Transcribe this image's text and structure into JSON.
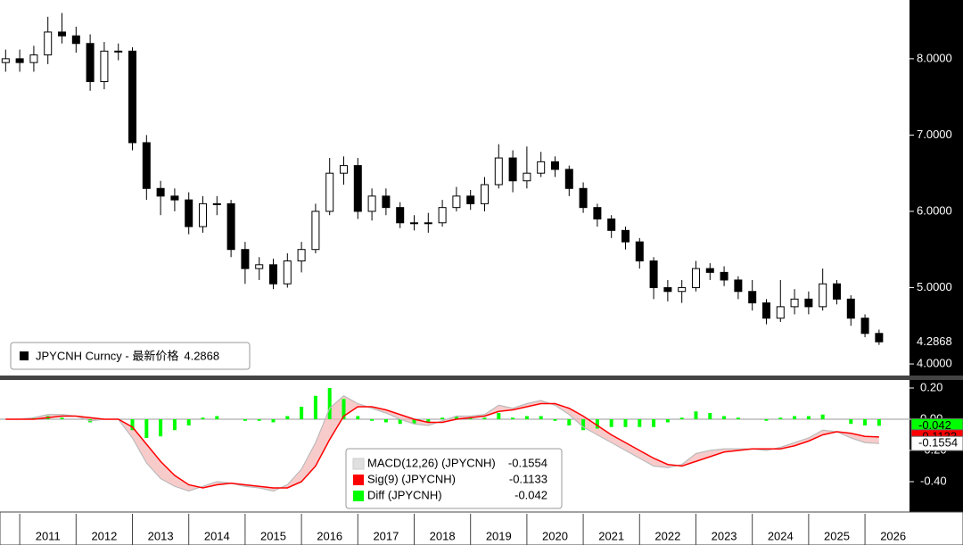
{
  "chart_data": [
    {
      "type": "candlestick",
      "name": "JPYCNH Curncy - 最新价格",
      "last": 4.2868,
      "x": [
        2010.75,
        2011,
        2011.25,
        2011.5,
        2011.75,
        2012,
        2012.25,
        2012.5,
        2012.75,
        2013,
        2013.25,
        2013.5,
        2013.75,
        2014,
        2014.25,
        2014.5,
        2014.75,
        2015,
        2015.25,
        2015.5,
        2015.75,
        2016,
        2016.25,
        2016.5,
        2016.75,
        2017,
        2017.25,
        2017.5,
        2017.75,
        2018,
        2018.25,
        2018.5,
        2018.75,
        2019,
        2019.25,
        2019.5,
        2019.75,
        2020,
        2020.25,
        2020.5,
        2020.75,
        2021,
        2021.25,
        2021.5,
        2021.75,
        2022,
        2022.25,
        2022.5,
        2022.75,
        2023,
        2023.25,
        2023.5,
        2023.75,
        2024,
        2024.25,
        2024.5,
        2024.75,
        2025,
        2025.25,
        2025.5,
        2025.75,
        2026,
        2026.25
      ],
      "open": [
        7.95,
        8.0,
        7.95,
        8.05,
        8.35,
        8.3,
        8.2,
        7.7,
        8.1,
        8.1,
        6.9,
        6.3,
        6.2,
        6.15,
        5.8,
        6.1,
        6.1,
        5.5,
        5.25,
        5.3,
        5.05,
        5.35,
        5.5,
        6.0,
        6.5,
        6.6,
        6.0,
        6.2,
        6.05,
        5.85,
        5.85,
        5.85,
        6.05,
        6.2,
        6.1,
        6.35,
        6.7,
        6.4,
        6.5,
        6.65,
        6.55,
        6.3,
        6.05,
        5.9,
        5.75,
        5.6,
        5.35,
        5.0,
        4.95,
        5.0,
        5.25,
        5.2,
        5.1,
        4.95,
        4.8,
        4.6,
        4.75,
        4.85,
        4.75,
        5.05,
        4.85,
        4.6,
        4.4
      ],
      "high": [
        8.12,
        8.12,
        8.17,
        8.55,
        8.6,
        8.42,
        8.32,
        8.22,
        8.2,
        8.15,
        7.0,
        6.4,
        6.3,
        6.25,
        6.2,
        6.2,
        6.15,
        5.6,
        5.4,
        5.38,
        5.45,
        5.6,
        6.1,
        6.7,
        6.72,
        6.7,
        6.3,
        6.3,
        6.12,
        5.95,
        5.98,
        6.15,
        6.32,
        6.28,
        6.45,
        6.88,
        6.8,
        6.85,
        6.78,
        6.72,
        6.6,
        6.38,
        6.1,
        5.95,
        5.8,
        5.65,
        5.4,
        5.1,
        5.1,
        5.35,
        5.32,
        5.28,
        5.15,
        5.1,
        4.85,
        5.1,
        4.98,
        4.95,
        5.25,
        5.1,
        4.9,
        4.65,
        4.45
      ],
      "low": [
        7.83,
        7.83,
        7.83,
        7.93,
        8.2,
        8.08,
        7.58,
        7.6,
        7.98,
        6.8,
        6.15,
        5.95,
        6.0,
        5.7,
        5.72,
        5.95,
        5.4,
        5.05,
        5.1,
        4.98,
        5.0,
        5.2,
        5.45,
        5.95,
        6.35,
        5.9,
        5.88,
        5.95,
        5.78,
        5.75,
        5.72,
        5.8,
        6.0,
        6.02,
        6.0,
        6.3,
        6.25,
        6.3,
        6.45,
        6.45,
        6.2,
        5.98,
        5.8,
        5.65,
        5.5,
        5.25,
        4.85,
        4.82,
        4.8,
        4.95,
        5.1,
        5.02,
        4.85,
        4.7,
        4.52,
        4.55,
        4.65,
        4.65,
        4.7,
        4.78,
        4.5,
        4.35,
        4.25
      ],
      "close": [
        8.0,
        7.95,
        8.05,
        8.35,
        8.3,
        8.2,
        7.7,
        8.1,
        8.1,
        6.9,
        6.3,
        6.2,
        6.15,
        5.8,
        6.1,
        6.1,
        5.5,
        5.25,
        5.3,
        5.05,
        5.35,
        5.5,
        6.0,
        6.5,
        6.6,
        6.0,
        6.2,
        6.05,
        5.85,
        5.85,
        5.85,
        6.05,
        6.2,
        6.1,
        6.35,
        6.7,
        6.4,
        6.5,
        6.65,
        6.55,
        6.3,
        6.05,
        5.9,
        5.75,
        5.6,
        5.35,
        5.0,
        4.95,
        5.0,
        5.25,
        5.2,
        5.1,
        4.95,
        4.8,
        4.6,
        4.75,
        4.85,
        4.75,
        5.05,
        4.85,
        4.6,
        4.4,
        4.29
      ],
      "up_color": "#ffffff",
      "down_color": "#000000",
      "xlim": [
        2010.65,
        2026.79
      ],
      "ylim": [
        3.86,
        8.77
      ],
      "yticks": [
        {
          "value": 8,
          "label": "8.0000"
        },
        {
          "value": 7,
          "label": "7.0000"
        },
        {
          "value": 6,
          "label": "6.0000"
        },
        {
          "value": 5,
          "label": "5.0000"
        },
        {
          "value": 4,
          "label": "4.0000"
        }
      ]
    },
    {
      "type": "macd",
      "series": [
        {
          "name": "MACD(12,26) (JPYCNH)",
          "color": "#e0e0e0",
          "last": -0.1554,
          "values": [
            0,
            0,
            0.01,
            0.03,
            0.03,
            0.02,
            -0.01,
            0,
            0,
            -0.12,
            -0.28,
            -0.38,
            -0.43,
            -0.46,
            -0.43,
            -0.4,
            -0.41,
            -0.43,
            -0.44,
            -0.46,
            -0.42,
            -0.32,
            -0.15,
            0.07,
            0.15,
            0.1,
            0.07,
            0.04,
            0,
            -0.03,
            -0.04,
            -0.01,
            0.02,
            0.02,
            0.03,
            0.09,
            0.07,
            0.1,
            0.12,
            0.09,
            0.03,
            -0.05,
            -0.1,
            -0.15,
            -0.2,
            -0.25,
            -0.3,
            -0.31,
            -0.29,
            -0.22,
            -0.2,
            -0.19,
            -0.19,
            -0.19,
            -0.2,
            -0.18,
            -0.15,
            -0.12,
            -0.07,
            -0.08,
            -0.12,
            -0.15,
            -0.1554
          ]
        },
        {
          "name": "Sig(9) (JPYCNH)",
          "color": "#ff0000",
          "last": -0.1133,
          "values": [
            0,
            0,
            0,
            0.01,
            0.02,
            0.02,
            0.01,
            0,
            0,
            -0.05,
            -0.16,
            -0.27,
            -0.36,
            -0.42,
            -0.44,
            -0.42,
            -0.41,
            -0.42,
            -0.43,
            -0.44,
            -0.44,
            -0.4,
            -0.3,
            -0.13,
            0.02,
            0.08,
            0.08,
            0.06,
            0.03,
            0,
            -0.02,
            -0.02,
            0,
            0.01,
            0.02,
            0.05,
            0.06,
            0.08,
            0.1,
            0.1,
            0.07,
            0.02,
            -0.04,
            -0.1,
            -0.15,
            -0.2,
            -0.25,
            -0.29,
            -0.3,
            -0.27,
            -0.24,
            -0.21,
            -0.2,
            -0.19,
            -0.19,
            -0.19,
            -0.17,
            -0.14,
            -0.1,
            -0.08,
            -0.09,
            -0.11,
            -0.1133
          ]
        },
        {
          "name": "Diff (JPYCNH)",
          "color": "#00ff00",
          "last": -0.042,
          "values": [
            0,
            0,
            0.01,
            0.02,
            0.01,
            0,
            -0.02,
            0,
            0,
            -0.07,
            -0.12,
            -0.11,
            -0.07,
            -0.04,
            0.01,
            0.02,
            0,
            -0.01,
            -0.01,
            -0.02,
            0.02,
            0.08,
            0.15,
            0.2,
            0.13,
            0.02,
            -0.01,
            -0.02,
            -0.03,
            -0.03,
            -0.02,
            0.01,
            0.02,
            0.01,
            0.01,
            0.04,
            0.01,
            0.02,
            0.02,
            -0.01,
            -0.04,
            -0.07,
            -0.06,
            -0.05,
            -0.05,
            -0.05,
            -0.05,
            -0.02,
            0.01,
            0.05,
            0.04,
            0.02,
            0.01,
            0,
            -0.01,
            0.01,
            0.02,
            0.02,
            0.03,
            0,
            -0.03,
            -0.04,
            -0.042
          ]
        }
      ],
      "ylim": [
        -0.583,
        0.24
      ],
      "yticks": [
        {
          "value": 0.2,
          "label": "0.20"
        },
        {
          "value": 0,
          "label": "0.00"
        },
        {
          "value": -0.2,
          "label": "-0.20"
        },
        {
          "value": -0.4,
          "label": "-0.40"
        }
      ],
      "xticks": [
        2011,
        2012,
        2013,
        2014,
        2015,
        2016,
        2017,
        2018,
        2019,
        2020,
        2021,
        2022,
        2023,
        2024,
        2025,
        2026
      ]
    }
  ]
}
